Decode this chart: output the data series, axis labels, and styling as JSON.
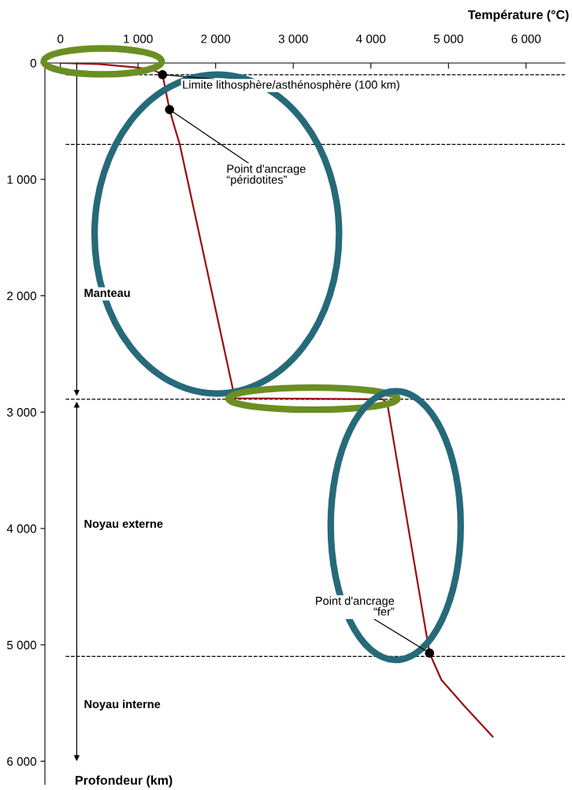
{
  "chart_data": {
    "type": "line",
    "xlabel": "Température (°C)",
    "ylabel": "Profondeur (km)",
    "series": [
      {
        "color": "#9b1010",
        "x": [
          15,
          500,
          1000,
          1200,
          1315,
          1406,
          1470,
          1538,
          2218,
          2250,
          4150,
          4210,
          4756,
          4909,
          5213,
          5569
        ],
        "values": [
          0,
          10,
          40,
          60,
          100,
          400,
          550,
          700,
          2790,
          2880,
          2890,
          2920,
          5071,
          5301,
          5531,
          5789
        ]
      },
      {
        "type": "scatter",
        "color": "#000000",
        "marker": "circle",
        "x": [
          1315,
          1406,
          4756
        ],
        "values": [
          100,
          400,
          5071
        ]
      }
    ],
    "xlim": [
      -200,
      6500
    ],
    "ylim": [
      6200,
      0
    ],
    "xticks": [
      0,
      {
        "value": 1000,
        "label": "1 000"
      },
      {
        "value": 2000,
        "label": "2 000"
      },
      {
        "value": 3000,
        "label": "3 000"
      },
      {
        "value": 4000,
        "label": "4 000"
      },
      {
        "value": 5000,
        "label": "5 000"
      },
      {
        "value": 6000,
        "label": "6 000"
      }
    ],
    "yticks": [
      0,
      {
        "value": 1000,
        "label": "1 000"
      },
      {
        "value": 2000,
        "label": "2 000"
      },
      {
        "value": 3000,
        "label": "3 000"
      },
      {
        "value": 4000,
        "label": "4 000"
      },
      {
        "value": 5000,
        "label": "5 000"
      },
      {
        "value": 6000,
        "label": "6 000"
      }
    ],
    "ref_lines": [
      {
        "axis": "y",
        "value": 100,
        "line_style": "dashed",
        "color": "#000000"
      },
      {
        "axis": "y",
        "value": 700,
        "line_style": "dashed",
        "color": "#000000"
      },
      {
        "axis": "y",
        "value": 2890,
        "line_style": "dashed",
        "color": "#000000"
      },
      {
        "axis": "y",
        "value": 5100,
        "line_style": "dashed",
        "color": "#000000"
      }
    ],
    "annotations": [
      {
        "text": "Limite lithosphère/asthénosphère (100 km)",
        "x": 1315,
        "y": 100
      },
      {
        "text": "Point d'ancrage\n“péridotites”",
        "x": 1406,
        "y": 400
      },
      {
        "text": "Point d'ancrage\n“fer”",
        "x": 4756,
        "y": 5071
      },
      "Manteau",
      "Noyau externe",
      "Noyau interne"
    ],
    "grid": false,
    "line_style": "solid"
  }
}
